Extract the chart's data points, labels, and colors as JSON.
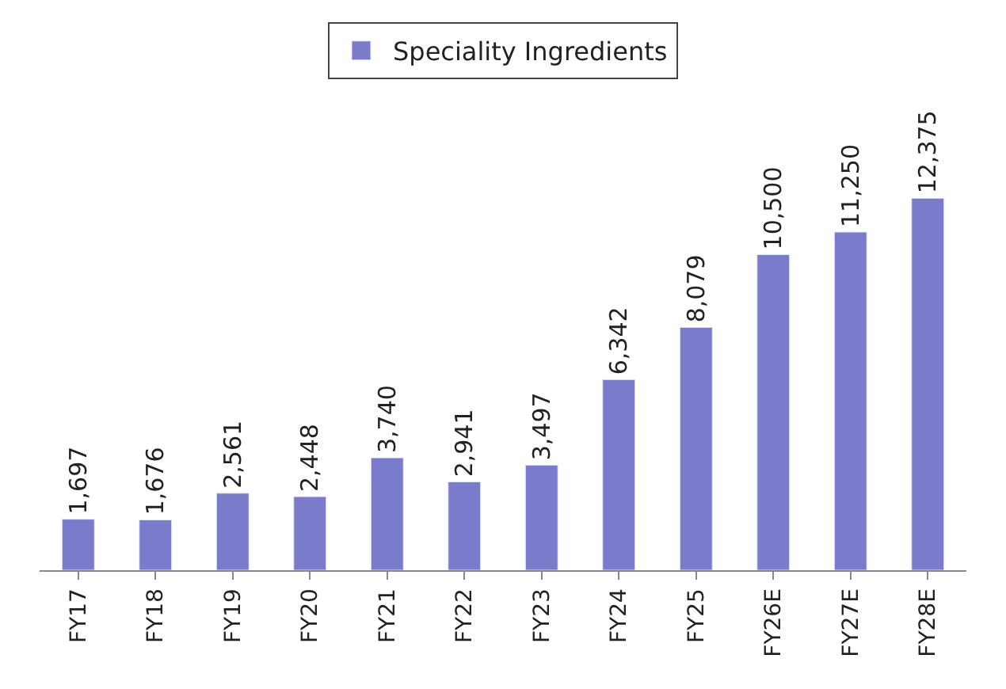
{
  "chart_data": {
    "type": "bar",
    "categories": [
      "FY17",
      "FY18",
      "FY19",
      "FY20",
      "FY21",
      "FY22",
      "FY23",
      "FY24",
      "FY25",
      "FY26E",
      "FY27E",
      "FY28E"
    ],
    "series": [
      {
        "name": "Speciality Ingredients",
        "color": "#7b7bcc",
        "values": [
          1697,
          1676,
          2561,
          2448,
          3740,
          2941,
          3497,
          6342,
          8079,
          10500,
          11250,
          12375
        ],
        "value_labels": [
          "1,697",
          "1,676",
          "2,561",
          "2,448",
          "3,740",
          "2,941",
          "3,497",
          "6,342",
          "8,079",
          "10,500",
          "11,250",
          "12,375"
        ]
      }
    ],
    "legend": "top",
    "tick_labels": "x"
  }
}
